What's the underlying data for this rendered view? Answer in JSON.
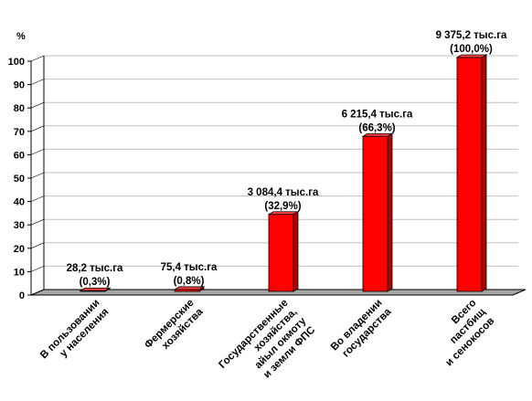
{
  "chart_data": {
    "type": "bar",
    "ylabel": "%",
    "ylim": [
      0,
      100
    ],
    "yticks": [
      0,
      10,
      20,
      30,
      40,
      50,
      60,
      70,
      80,
      90,
      100
    ],
    "grid": true,
    "bar_color": "#ff0000",
    "categories": [
      [
        "В пользовании",
        "у населения"
      ],
      [
        "Фермерские",
        "хозяйства"
      ],
      [
        "Государственные",
        "хозяйства,",
        "айыл окмоту",
        "и земли ФПС"
      ],
      [
        "Во владении",
        "государства"
      ],
      [
        "Всего",
        "пастбищ",
        "и сенокосов"
      ]
    ],
    "values": [
      0.3,
      0.8,
      32.9,
      66.3,
      100.0
    ],
    "data_labels": [
      [
        "28,2 тыс.га",
        "(0,3%)"
      ],
      [
        "75,4 тыс.га",
        "(0,8%)"
      ],
      [
        "3 084,4 тыс.га",
        "(32,9%)"
      ],
      [
        "6 215,4 тыс.га",
        "(66,3%)"
      ],
      [
        "9 375,2 тыс.га",
        "(100,0%)"
      ]
    ]
  }
}
